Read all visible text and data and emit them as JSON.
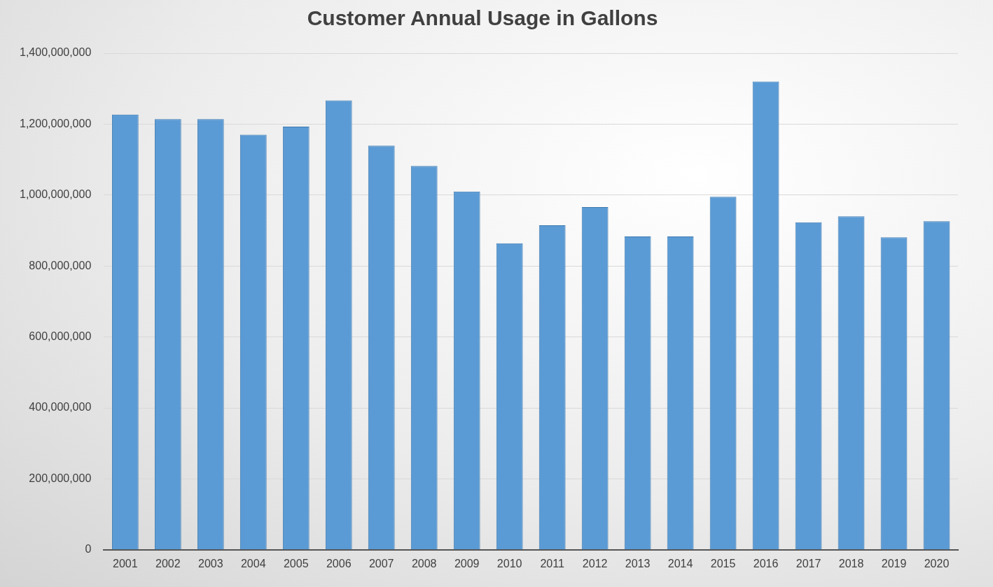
{
  "chart_data": {
    "type": "bar",
    "title": "Customer Annual Usage in Gallons",
    "categories": [
      "2001",
      "2002",
      "2003",
      "2004",
      "2005",
      "2006",
      "2007",
      "2008",
      "2009",
      "2010",
      "2011",
      "2012",
      "2013",
      "2014",
      "2015",
      "2016",
      "2017",
      "2018",
      "2019",
      "2020"
    ],
    "values": [
      1227000000,
      1214000000,
      1214000000,
      1170000000,
      1193000000,
      1267000000,
      1139000000,
      1082000000,
      1010000000,
      864000000,
      915000000,
      966000000,
      883000000,
      883000000,
      995000000,
      1320000000,
      923000000,
      940000000,
      881000000,
      926000000
    ],
    "color": "#5b9bd5",
    "ylim": [
      0,
      1400000000
    ],
    "yticks": [
      0,
      {
        "value": 200000000,
        "label": "200,000,000"
      },
      {
        "value": 400000000,
        "label": "400,000,000"
      },
      {
        "value": 600000000,
        "label": "600,000,000"
      },
      {
        "value": 800000000,
        "label": "800,000,000"
      },
      {
        "value": 1000000000,
        "label": "1,000,000,000"
      },
      {
        "value": 1200000000,
        "label": "1,200,000,000"
      },
      {
        "value": 1400000000,
        "label": "1,400,000,000"
      }
    ],
    "grid": "y"
  }
}
